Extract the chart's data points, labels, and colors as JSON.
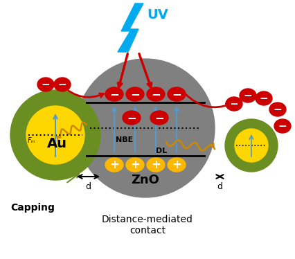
{
  "title": "Distance-mediated\ncontact",
  "uv_label": "UV",
  "au_label": "Au",
  "zno_label": "ZnO",
  "capping_label": "Capping",
  "nbe_label": "NBE",
  "dl_label": "DL",
  "fm_label": "Fₘ",
  "d_label": "d",
  "bg_color": "white",
  "zno_color": "#808080",
  "au_color": "#FFD700",
  "shell_color": "#6B8E23",
  "red_color": "#CC0000",
  "yellow_plus_color": "#FFB800",
  "blue_arrow_color": "#5599CC",
  "uv_color": "#00AAEE",
  "gold_wave_color": "#CC8800",
  "black": "#000000"
}
